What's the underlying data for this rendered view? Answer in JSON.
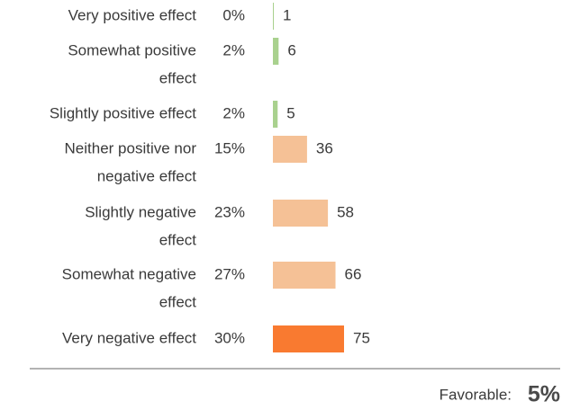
{
  "chart_data": {
    "type": "bar",
    "categories": [
      [
        "Very positive effect"
      ],
      [
        "Somewhat positive",
        "effect"
      ],
      [
        "Slightly positive effect"
      ],
      [
        "Neither positive nor",
        "negative effect"
      ],
      [
        "Slightly negative",
        "effect"
      ],
      [
        "Somewhat negative",
        "effect"
      ],
      [
        "Very negative effect"
      ]
    ],
    "shares": [
      "0%",
      "2%",
      "2%",
      "15%",
      "23%",
      "27%",
      "30%"
    ],
    "values": [
      1,
      6,
      5,
      36,
      58,
      66,
      75
    ],
    "colors": [
      "#a9d18e",
      "#a9d18e",
      "#a9d18e",
      "#f5c196",
      "#f5c196",
      "#f5c196",
      "#f97a30"
    ],
    "favorable_label": "Favorable:",
    "favorable_value": "5%"
  }
}
